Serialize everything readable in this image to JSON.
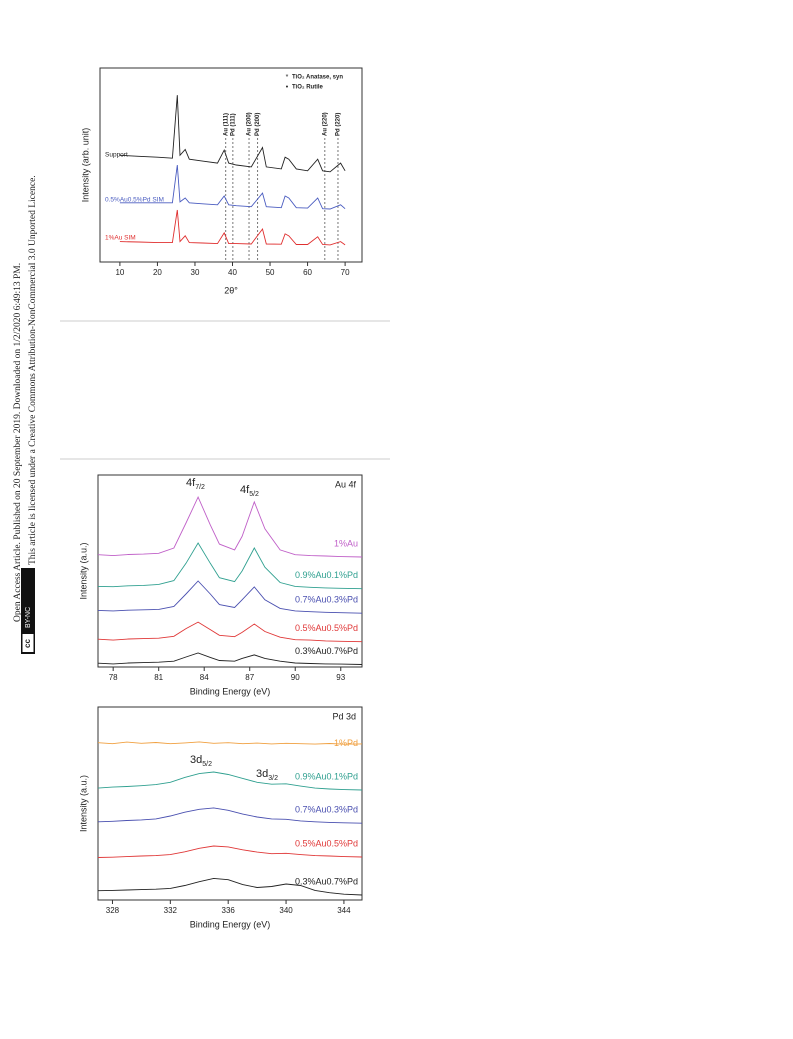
{
  "side_text": {
    "line1": "Open Access Article. Published on 20 September 2019. Downloaded on 1/2/2020 6:49:13 PM.",
    "line2": "This article is licensed under a Creative Commons Attribution-NonCommercial 3.0 Unported Licence.",
    "badge": [
      "cc",
      "BY-NC"
    ]
  },
  "chart_data": [
    {
      "type": "line",
      "xlabel": "2θ°",
      "ylabel": "Intensity (arb. unit)",
      "x": [
        10,
        15,
        20,
        24,
        25.3,
        26,
        27.4,
        28.5,
        32,
        36,
        37.8,
        39,
        41,
        45,
        48,
        49,
        53,
        54,
        55,
        57,
        60,
        62.7,
        64,
        66,
        68.8,
        70
      ],
      "xlim": [
        4.7,
        74.5
      ],
      "ylim": [
        0,
        100
      ],
      "xticks": [
        10,
        20,
        30,
        40,
        50,
        60,
        70
      ],
      "legend": [
        {
          "symbol": "*",
          "label": "TiO₂ Anatase, syn"
        },
        {
          "symbol": "•",
          "label": "TiO₂ Rutile"
        }
      ],
      "reference_lines": [
        {
          "x": 38.2,
          "label": "Au (111)"
        },
        {
          "x": 40.1,
          "label": "Pd (111)"
        },
        {
          "x": 44.4,
          "label": "Au (200)"
        },
        {
          "x": 46.7,
          "label": "Pd (200)"
        },
        {
          "x": 64.6,
          "label": "Au (220)"
        },
        {
          "x": 68.1,
          "label": "Pd (220)"
        }
      ],
      "series": [
        {
          "name": "Support",
          "color": "#222222",
          "values": [
            55,
            54.5,
            54,
            53.5,
            86,
            55,
            58,
            53,
            52,
            51,
            57.7,
            51,
            50,
            49,
            59,
            49,
            48,
            54,
            53,
            48,
            47,
            53,
            47,
            46.5,
            51,
            47
          ]
        },
        {
          "name": "0.5%Au0.5%Pd SIM",
          "color": "#4a5cc0",
          "values": [
            30.5,
            30.5,
            30.5,
            30.5,
            50,
            31,
            33,
            30.5,
            30,
            29.5,
            34,
            29.5,
            29,
            28.5,
            35.5,
            28.5,
            28,
            34,
            33,
            28,
            27.8,
            33,
            27.5,
            27.3,
            29.5,
            27.5
          ]
        },
        {
          "name": "1%Au SIM",
          "color": "#e03030",
          "values": [
            10.5,
            10.3,
            10,
            10,
            26.8,
            10.5,
            13.5,
            10,
            9.8,
            9.5,
            15,
            9.5,
            9.5,
            9.3,
            17,
            9.3,
            9.2,
            14.5,
            13.5,
            9,
            9,
            13,
            9,
            8.8,
            10.5,
            8.8
          ]
        }
      ]
    },
    {
      "type": "line",
      "panel_label": "Au 4f",
      "xlabel": "Binding Energy (eV)",
      "ylabel": "Intensity (a.u.)",
      "x": [
        77,
        78,
        79,
        80,
        81,
        82,
        82.8,
        83.6,
        84.4,
        85,
        86,
        86.5,
        87.3,
        88,
        89,
        90,
        91,
        92,
        93,
        94.4
      ],
      "xlim": [
        77,
        94.4
      ],
      "ylim": [
        0,
        100
      ],
      "xticks": [
        78,
        81,
        84,
        87,
        90,
        93
      ],
      "annotations": [
        {
          "text": "4f",
          "sub": "7/2"
        },
        {
          "text": "4f",
          "sub": "5/2"
        }
      ],
      "series": [
        {
          "name": "1%Au",
          "color": "#c060c8",
          "values": [
            58.5,
            58,
            58.6,
            58.8,
            59.2,
            62,
            75,
            88.5,
            74,
            64,
            61,
            68,
            86,
            72,
            61,
            58.5,
            58,
            57.8,
            57.5,
            57.3
          ]
        },
        {
          "name": "0.9%Au0.1%Pd",
          "color": "#30a090",
          "values": [
            42,
            41.8,
            42.3,
            42.5,
            43,
            45,
            54,
            64.6,
            54,
            46.5,
            44.5,
            50,
            62,
            52,
            44,
            42,
            41.5,
            41.2,
            41,
            40.8
          ]
        },
        {
          "name": "0.7%Au0.3%Pd",
          "color": "#4a50b0",
          "values": [
            29.5,
            29.2,
            29.6,
            29.8,
            30,
            31.5,
            38,
            44.8,
            38,
            32.5,
            31,
            35,
            41.7,
            35,
            30.5,
            29.2,
            28.8,
            28.5,
            28.3,
            28
          ]
        },
        {
          "name": "0.5%Au0.5%Pd",
          "color": "#e03838",
          "values": [
            14.5,
            14,
            14.6,
            14.8,
            15,
            16,
            20,
            23.4,
            19.5,
            16.5,
            15.8,
            18,
            22.4,
            18.5,
            15.5,
            14.2,
            14,
            13.6,
            13.4,
            13.2
          ]
        },
        {
          "name": "0.3%Au0.7%Pd",
          "color": "#222222",
          "values": [
            2,
            1.6,
            2.1,
            2.3,
            2.5,
            3,
            5.2,
            7.3,
            5,
            3.4,
            3,
            4.5,
            6.3,
            4.5,
            3,
            2.1,
            1.8,
            1.6,
            1.5,
            1.3
          ]
        }
      ]
    },
    {
      "type": "line",
      "panel_label": "Pd 3d",
      "xlabel": "Binding Energy (eV)",
      "ylabel": "Intensity (a.u.)",
      "x": [
        327,
        328,
        329,
        330,
        331,
        332,
        333,
        334,
        335,
        336,
        337,
        338,
        339,
        340,
        341,
        342,
        343,
        344,
        345.25
      ],
      "xlim": [
        327,
        345.25
      ],
      "ylim": [
        0,
        100
      ],
      "xticks": [
        328,
        332,
        336,
        340,
        344
      ],
      "annotations": [
        {
          "text": "3d",
          "sub": "5/2"
        },
        {
          "text": "3d",
          "sub": "3/2"
        }
      ],
      "series": [
        {
          "name": "1%Pd",
          "color": "#f0a040",
          "values": [
            81.5,
            81,
            81.8,
            81.2,
            81.6,
            81,
            81.4,
            81.9,
            81.2,
            81.5,
            81,
            81.3,
            80.9,
            81.2,
            81,
            80.8,
            81.1,
            80.7,
            80.9
          ]
        },
        {
          "name": "0.9%Au0.1%Pd",
          "color": "#30a090",
          "values": [
            58,
            58.5,
            58.8,
            59.2,
            59.8,
            61,
            63.5,
            65.5,
            66.3,
            65,
            63,
            61,
            60,
            60.2,
            59,
            58,
            57.5,
            57.2,
            57
          ]
        },
        {
          "name": "0.7%Au0.3%Pd",
          "color": "#4a50b0",
          "values": [
            40.5,
            40.8,
            41.2,
            41.5,
            42,
            43.5,
            45.5,
            47,
            47.7,
            46.5,
            44.5,
            43,
            42,
            41.8,
            41,
            40.5,
            40.2,
            40,
            39.8
          ]
        },
        {
          "name": "0.5%Au0.5%Pd",
          "color": "#e03838",
          "values": [
            22,
            22.2,
            22.5,
            22.8,
            23,
            23.5,
            25,
            26.8,
            28,
            27.5,
            26,
            24.8,
            24,
            24.2,
            23.5,
            23,
            22.8,
            22.5,
            22.3
          ]
        },
        {
          "name": "0.3%Au0.7%Pd",
          "color": "#222222",
          "values": [
            4.8,
            5,
            5.2,
            5.4,
            5.6,
            6,
            7.5,
            9.5,
            11.2,
            10.5,
            8,
            6.5,
            7,
            8.3,
            7.5,
            5,
            3.8,
            3,
            2.6
          ]
        }
      ]
    }
  ]
}
